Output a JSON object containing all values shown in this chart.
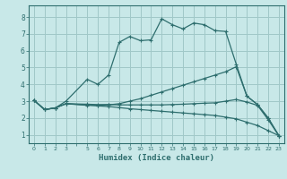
{
  "xlabel": "Humidex (Indice chaleur)",
  "bg_color": "#c8e8e8",
  "grid_color": "#a0c8c8",
  "line_color": "#2e6e6e",
  "spine_color": "#2e6e6e",
  "xlim": [
    -0.5,
    23.5
  ],
  "ylim": [
    0.5,
    8.7
  ],
  "xtick_labels": [
    "0",
    "1",
    "2",
    "3",
    "5",
    "6",
    "7",
    "8",
    "9",
    "10",
    "11",
    "12",
    "13",
    "14",
    "15",
    "16",
    "17",
    "18",
    "19",
    "20",
    "21",
    "22",
    "23"
  ],
  "yticks": [
    1,
    2,
    3,
    4,
    5,
    6,
    7,
    8
  ],
  "line1_x": [
    0,
    1,
    2,
    3,
    5,
    6,
    7,
    8,
    9,
    10,
    11,
    12,
    13,
    14,
    15,
    16,
    17,
    18,
    19,
    20,
    21,
    22,
    23
  ],
  "line1_y": [
    3.05,
    2.5,
    2.6,
    3.0,
    4.3,
    4.0,
    4.55,
    6.5,
    6.85,
    6.6,
    6.65,
    7.9,
    7.55,
    7.3,
    7.65,
    7.55,
    7.2,
    7.15,
    5.2,
    3.3,
    2.8,
    2.0,
    0.95
  ],
  "line2_x": [
    0,
    1,
    2,
    3,
    5,
    6,
    7,
    8,
    9,
    10,
    11,
    12,
    13,
    14,
    15,
    16,
    17,
    18,
    19,
    20,
    21,
    22,
    23
  ],
  "line2_y": [
    3.05,
    2.5,
    2.6,
    2.85,
    2.75,
    2.75,
    2.78,
    2.85,
    3.0,
    3.15,
    3.35,
    3.55,
    3.75,
    3.95,
    4.15,
    4.35,
    4.55,
    4.75,
    5.05,
    3.3,
    2.8,
    2.0,
    0.95
  ],
  "line3_x": [
    0,
    1,
    2,
    3,
    5,
    6,
    7,
    8,
    9,
    10,
    11,
    12,
    13,
    14,
    15,
    16,
    17,
    18,
    19,
    20,
    21,
    22,
    23
  ],
  "line3_y": [
    3.05,
    2.5,
    2.6,
    2.85,
    2.78,
    2.72,
    2.68,
    2.62,
    2.55,
    2.5,
    2.45,
    2.4,
    2.35,
    2.3,
    2.25,
    2.2,
    2.15,
    2.05,
    1.95,
    1.75,
    1.55,
    1.25,
    0.95
  ],
  "line4_x": [
    0,
    1,
    2,
    3,
    5,
    6,
    7,
    8,
    9,
    10,
    11,
    12,
    13,
    14,
    15,
    16,
    17,
    18,
    19,
    20,
    21,
    22,
    23
  ],
  "line4_y": [
    3.05,
    2.5,
    2.6,
    2.85,
    2.82,
    2.8,
    2.8,
    2.78,
    2.78,
    2.78,
    2.78,
    2.78,
    2.8,
    2.82,
    2.85,
    2.88,
    2.9,
    3.0,
    3.1,
    2.95,
    2.75,
    1.9,
    0.95
  ]
}
